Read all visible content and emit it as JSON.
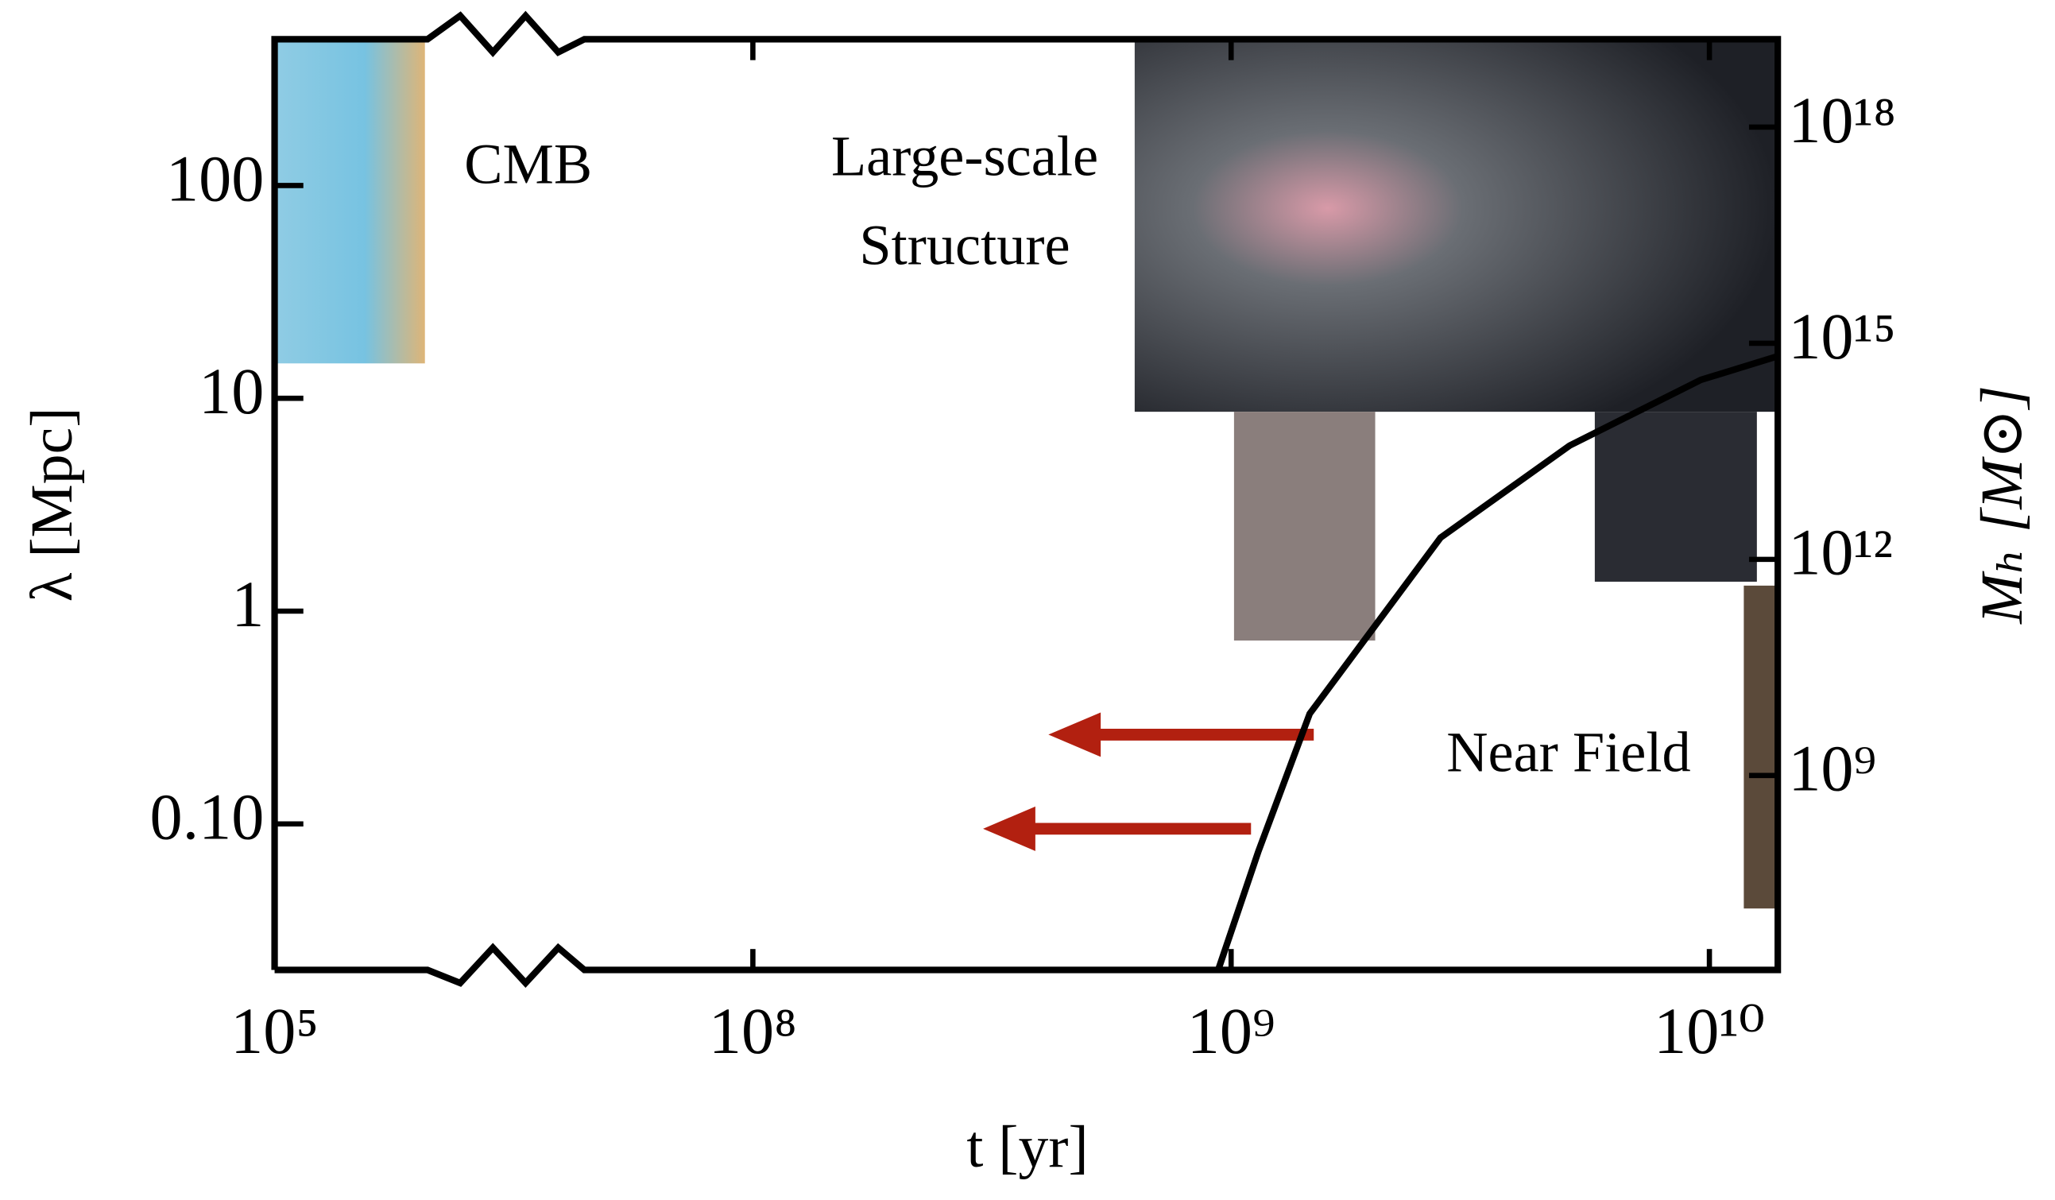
{
  "chart_data": {
    "type": "line",
    "x_label": "t [yr]",
    "y_label": "λ [Mpc]",
    "y2_label": "Mₕ [M⊙]",
    "xscale": "log",
    "yscale": "log",
    "y2scale": "log",
    "xlim": [
      100000,
      13900000000
    ],
    "xticks": [
      {
        "value": 100000,
        "label": "10⁵"
      },
      {
        "value": 100000000,
        "label": "10⁸"
      },
      {
        "value": 1000000000,
        "label": "10⁹"
      },
      {
        "value": 10000000000,
        "label": "10¹⁰"
      }
    ],
    "ylim": [
      0.0206,
      487
    ],
    "yticks": [
      {
        "value": 0.1,
        "label": "0.10"
      },
      1,
      10,
      100
    ],
    "y2lim": [
      2000000,
      1.66e+19
    ],
    "y2ticks": [
      {
        "value": 1000000000,
        "label": "10⁹"
      },
      {
        "value": 1000000000000,
        "label": "10¹²"
      },
      {
        "value": 1000000000000000.0,
        "label": "10¹⁵"
      },
      {
        "value": 1e+18,
        "label": "10¹⁸"
      }
    ],
    "series": [
      {
        "color": "#000000",
        "axis": "y2",
        "x": [
          940000000,
          1140000000,
          1460000000,
          2740000000,
          5100000000,
          9600000000,
          13900000000
        ],
        "values": [
          2000000,
          88000000,
          7200000000,
          2000000000000,
          38000000000000,
          310000000000000,
          660000000000000
        ]
      }
    ],
    "annotations": [
      {
        "text": "CMB",
        "color": "#9a9a9a"
      },
      {
        "text": "Large-scale",
        "color": "#9a9a9a"
      },
      {
        "text": "Structure",
        "color": "#9a9a9a"
      },
      {
        "text": "Near Field",
        "color": "#b22010"
      }
    ]
  }
}
